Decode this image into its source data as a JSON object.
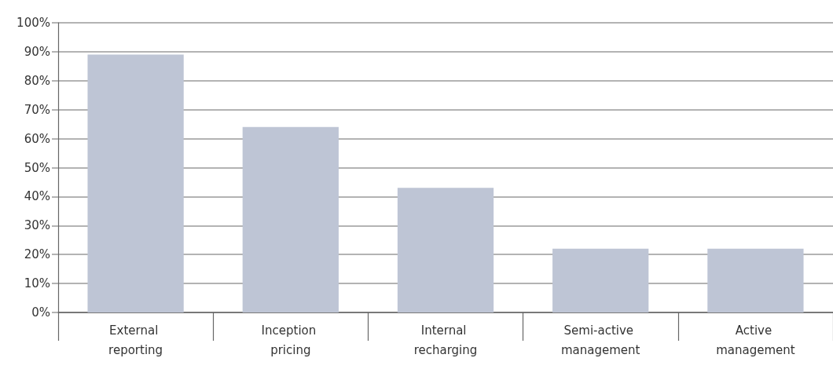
{
  "chart_data": {
    "type": "bar",
    "categories": [
      "External reporting",
      "Inception pricing",
      "Internal recharging",
      "Semi-active management",
      "Active management"
    ],
    "values": [
      89,
      64,
      43,
      22,
      22
    ],
    "color": "#bec5d5",
    "ylim": [
      0,
      100
    ],
    "yticks": [
      {
        "value": 0,
        "label": "0%"
      },
      {
        "value": 10,
        "label": "10%"
      },
      {
        "value": 20,
        "label": "20%"
      },
      {
        "value": 30,
        "label": "30%"
      },
      {
        "value": 40,
        "label": "40%"
      },
      {
        "value": 50,
        "label": "50%"
      },
      {
        "value": 60,
        "label": "60%"
      },
      {
        "value": 70,
        "label": "70%"
      },
      {
        "value": 80,
        "label": "80%"
      },
      {
        "value": 90,
        "label": "90%"
      },
      {
        "value": 100,
        "label": "100%"
      }
    ],
    "grid": "y"
  }
}
